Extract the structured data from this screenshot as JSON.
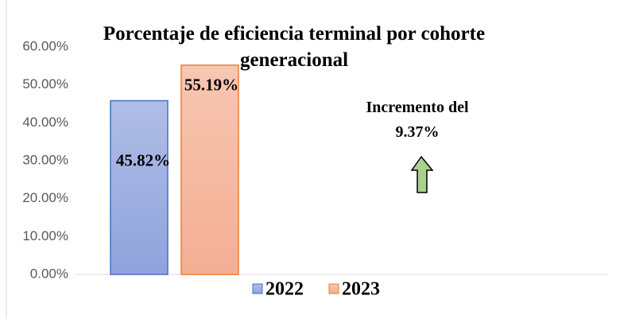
{
  "chart_data": {
    "type": "bar",
    "title": "Porcentaje de eficiencia terminal por cohorte generacional",
    "categories": [
      null
    ],
    "series": [
      {
        "name": "2022",
        "color": "#8fa3dc",
        "values": [
          45.82
        ],
        "value_labels": [
          "45.82%"
        ]
      },
      {
        "name": "2023",
        "color": "#f4ae93",
        "values": [
          55.19
        ],
        "value_labels": [
          "55.19%"
        ]
      }
    ],
    "annotation": "Incremento del 9.37%",
    "ylim": [
      0,
      60
    ],
    "yticks": [
      {
        "value": 0,
        "label": "0.00%"
      },
      {
        "value": 10,
        "label": "10.00%"
      },
      {
        "value": 20,
        "label": "20.00%"
      },
      {
        "value": 30,
        "label": "30.00%"
      },
      {
        "value": 40,
        "label": "40.00%"
      },
      {
        "value": 50,
        "label": "50.00%"
      },
      {
        "value": 60,
        "label": "60.00%"
      }
    ],
    "grid": false,
    "legend": "bottom"
  }
}
